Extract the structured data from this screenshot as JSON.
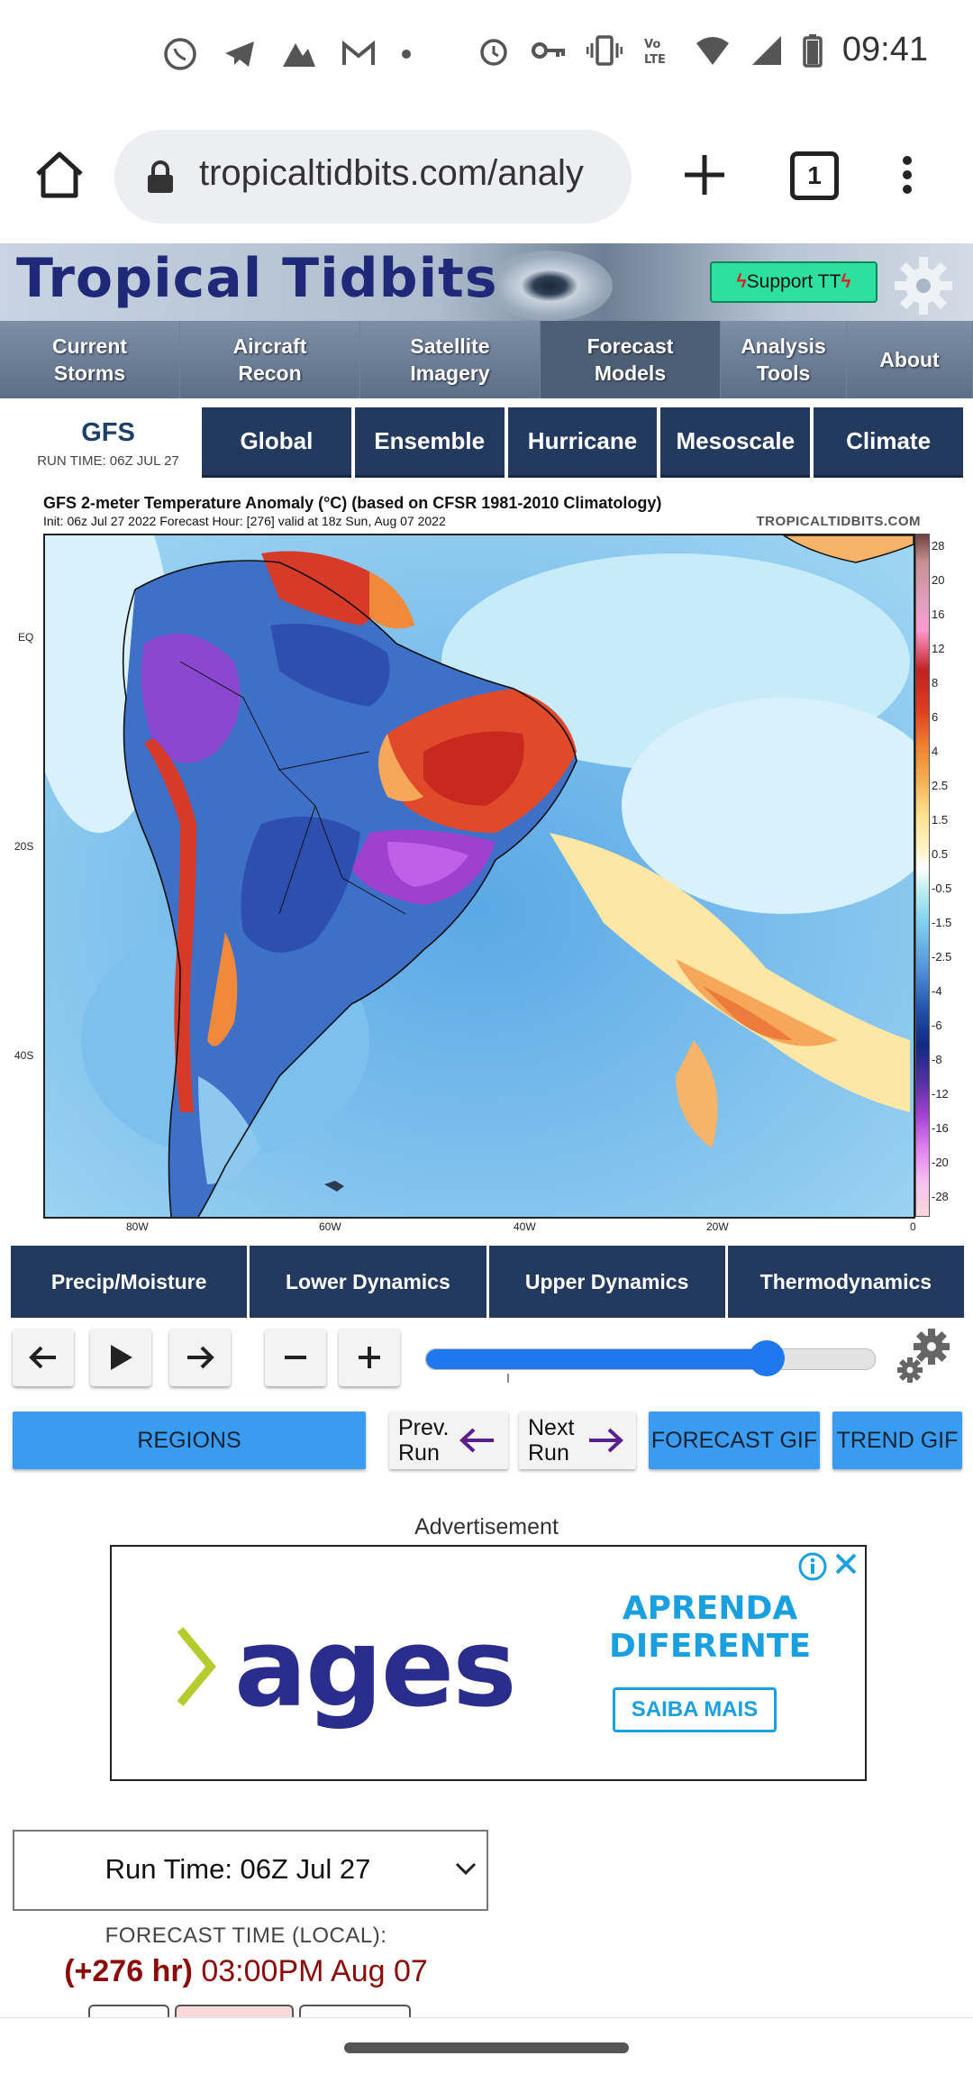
{
  "status_bar": {
    "time": "09:41",
    "left_icons": [
      "whatsapp-icon",
      "telegram-icon",
      "vpn-icon",
      "gmail-icon",
      "dot-icon"
    ],
    "right_icons": [
      "alarm-icon",
      "key-icon",
      "vibrate-icon",
      "volte-icon",
      "wifi-icon",
      "signal-icon",
      "battery-icon"
    ]
  },
  "browser": {
    "url": "tropicaltidbits.com/analy",
    "tab_count": "1"
  },
  "site": {
    "logo": "Tropical Tidbits",
    "support_label": "Support TT",
    "nav": [
      {
        "label": "Current Storms"
      },
      {
        "label": "Aircraft Recon"
      },
      {
        "label": "Satellite Imagery"
      },
      {
        "label": "Forecast Models"
      },
      {
        "label": "Analysis Tools"
      },
      {
        "label": "About"
      }
    ]
  },
  "model": {
    "name": "GFS",
    "run_time": "RUN TIME: 06Z JUL 27",
    "tabs": [
      "Global",
      "Ensemble",
      "Hurricane",
      "Mesoscale",
      "Climate"
    ]
  },
  "map": {
    "title": "GFS 2-meter Temperature Anomaly (°C) (based on CFSR 1981-2010 Climatology)",
    "subtitle": "Init: 06z Jul 27 2022   Forecast Hour: [276]   valid at 18z Sun, Aug 07 2022",
    "watermark": "TROPICALTIDBITS.COM",
    "colorbar_ticks": [
      "28",
      "20",
      "16",
      "12",
      "8",
      "6",
      "4",
      "2.5",
      "1.5",
      "0.5",
      "-0.5",
      "-1.5",
      "-2.5",
      "-4",
      "-6",
      "-8",
      "-12",
      "-16",
      "-20",
      "-28"
    ],
    "lat_labels": [
      "EQ",
      "20S",
      "40S"
    ],
    "lon_labels": [
      "80W",
      "60W",
      "40W",
      "20W",
      "0"
    ]
  },
  "variable_tabs": [
    "Precip/Moisture",
    "Lower Dynamics",
    "Upper Dynamics",
    "Thermodynamics"
  ],
  "controls": {
    "slider_fraction": 0.76,
    "regions": "REGIONS",
    "prev_run": "Prev. Run",
    "prev_run_line1": "Prev.",
    "prev_run_line2": "Run",
    "next_run_line1": "Next",
    "next_run_line2": "Run",
    "forecast_gif": "FORECAST GIF",
    "trend_gif": "TREND GIF"
  },
  "ad": {
    "label": "Advertisement",
    "brand": "ages",
    "headline_line1": "APRENDA",
    "headline_line2": "DIFERENTE",
    "cta": "SAIBA MAIS"
  },
  "run_select": {
    "value": "Run Time: 06Z Jul 27",
    "forecast_label": "FORECAST TIME (LOCAL):",
    "forecast_hours": "(+276 hr)",
    "forecast_time": "03:00PM Aug 07"
  },
  "colors": {
    "nav_dark": "#23395d",
    "accent_blue": "#3a9cf0",
    "slider_blue": "#1f78f0",
    "forecast_red": "#8b0a0a"
  }
}
